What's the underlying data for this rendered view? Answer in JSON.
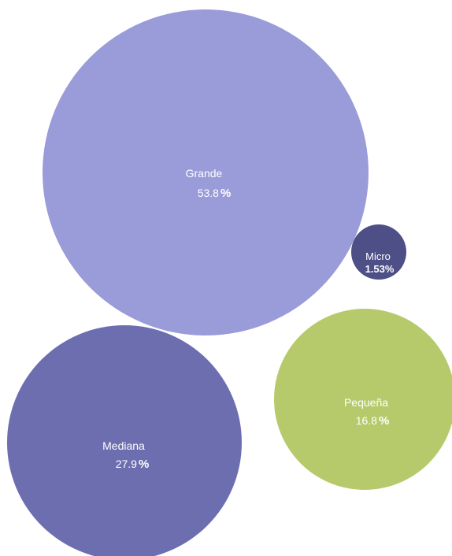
{
  "chart_data": {
    "type": "bubble",
    "unit": "%",
    "bubbles": [
      {
        "name": "Grande",
        "value": "53.8",
        "color": "#9a9bd9"
      },
      {
        "name": "Micro",
        "value": "1.53",
        "color": "#4d4f86"
      },
      {
        "name": "Pequeña",
        "value": "16.8",
        "color": "#b6ca6b"
      },
      {
        "name": "Mediana",
        "value": "27.9",
        "color": "#6d6eb0"
      }
    ]
  }
}
